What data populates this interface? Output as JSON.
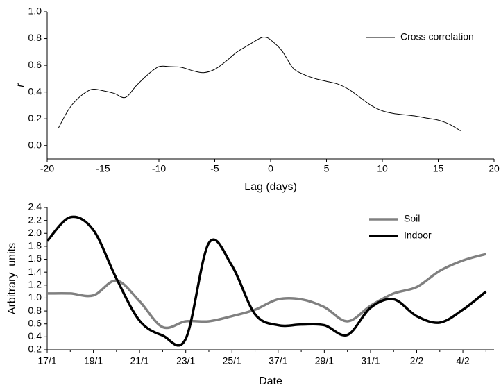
{
  "chart_data": [
    {
      "type": "line",
      "x": [
        -19,
        -18,
        -17,
        -16,
        -15,
        -14,
        -13,
        -12,
        -11,
        -10,
        -9,
        -8,
        -7,
        -6,
        -5,
        -4,
        -3,
        -2,
        -1,
        -0.5,
        0,
        1,
        2,
        3,
        4,
        5,
        6,
        7,
        8,
        9,
        10,
        11,
        12,
        13,
        14,
        15,
        16,
        17
      ],
      "series": [
        {
          "name": "Cross correlation",
          "color": "#000000",
          "values": [
            0.13,
            0.28,
            0.37,
            0.42,
            0.41,
            0.39,
            0.36,
            0.45,
            0.53,
            0.59,
            0.59,
            0.585,
            0.56,
            0.545,
            0.57,
            0.63,
            0.7,
            0.75,
            0.8,
            0.81,
            0.79,
            0.71,
            0.58,
            0.53,
            0.5,
            0.48,
            0.46,
            0.42,
            0.36,
            0.3,
            0.26,
            0.24,
            0.23,
            0.22,
            0.205,
            0.19,
            0.16,
            0.11
          ]
        }
      ],
      "xlim": [
        -20,
        20
      ],
      "xticks": [
        -20,
        -15,
        -10,
        -5,
        0,
        5,
        10,
        15,
        20
      ],
      "ylim": [
        -0.1,
        1.0
      ],
      "yticks": [
        {
          "value": 0,
          "label": "0.0"
        },
        0.2,
        0.4,
        0.6,
        0.8,
        {
          "value": 1,
          "label": "1.0"
        }
      ],
      "x_label": "Lag (days)",
      "y_label": "r",
      "legend": "upper right"
    },
    {
      "type": "line",
      "categories": [
        "17/1",
        null,
        "19/1",
        null,
        "21/1",
        null,
        "23/1",
        null,
        "25/1",
        null,
        "37/1",
        null,
        "29/1",
        null,
        "31/1",
        null,
        "2/2",
        null,
        "4/2",
        null
      ],
      "series": [
        {
          "name": "Soil",
          "color": "#808080",
          "values": [
            1.07,
            1.07,
            1.04,
            1.27,
            0.95,
            0.55,
            0.64,
            0.64,
            0.72,
            0.82,
            0.98,
            0.98,
            0.86,
            0.64,
            0.88,
            1.07,
            1.17,
            1.42,
            1.58,
            1.68
          ]
        },
        {
          "name": "Indoor",
          "color": "#000000",
          "values": [
            1.88,
            2.25,
            2.05,
            1.3,
            0.65,
            0.42,
            0.37,
            1.85,
            1.5,
            0.75,
            0.58,
            0.59,
            0.58,
            0.43,
            0.85,
            0.98,
            0.72,
            0.62,
            0.82,
            1.1
          ]
        }
      ],
      "ylim": [
        0.2,
        2.4
      ],
      "yticks": [
        0.2,
        0.4,
        0.6,
        0.8,
        {
          "value": 1,
          "label": "1.0"
        },
        1.2,
        1.4,
        1.6,
        1.8,
        {
          "value": 2,
          "label": "2.0"
        },
        2.2,
        2.4
      ],
      "x_label": "Date",
      "y_label": "Arbitrary  units",
      "legend": "upper right"
    }
  ]
}
